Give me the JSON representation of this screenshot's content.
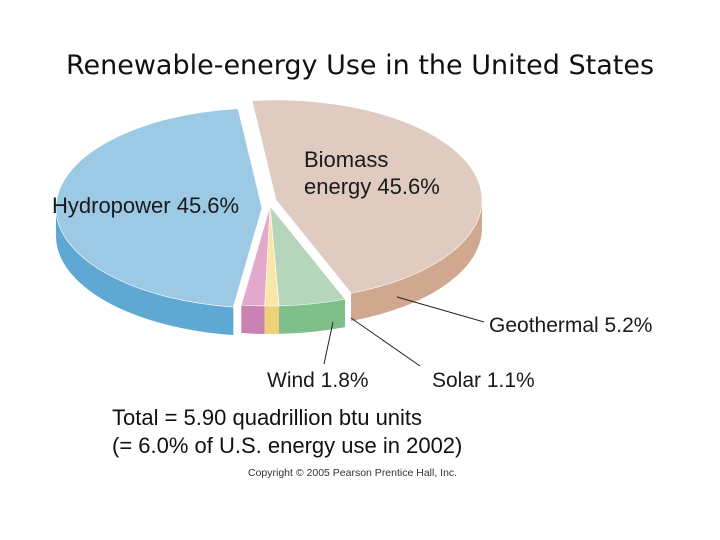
{
  "slide": {
    "title": "Renewable-energy Use in the United States"
  },
  "chart_data": {
    "type": "pie",
    "title": "Renewable-energy Use in the United States",
    "slices": [
      {
        "name": "Hydropower",
        "value": 45.6,
        "label": "Hydropower 45.6%",
        "color": "#9cc9e3",
        "side_color": "#5fa8d3"
      },
      {
        "name": "Biomass energy",
        "value": 45.6,
        "label_lines": [
          "Biomass",
          "energy 45.6%"
        ],
        "color": "#dfcbbf",
        "side_color": "#cfa88f"
      },
      {
        "name": "Geothermal",
        "value": 5.2,
        "label": "Geothermal 5.2%",
        "color": "#b5d6bb",
        "side_color": "#7fbf8a"
      },
      {
        "name": "Solar",
        "value": 1.1,
        "label": "Solar 1.1%",
        "color": "#f8e7a8",
        "side_color": "#eed27a"
      },
      {
        "name": "Wind",
        "value": 1.8,
        "label": "Wind 1.8%",
        "color": "#e3a9cd",
        "side_color": "#c982b2"
      }
    ],
    "notes": [
      "Total = 5.90 quadrillion btu units",
      "(= 6.0% of U.S. energy use in 2002)"
    ],
    "credit": "Copyright © 2005 Pearson Prentice Hall, Inc."
  }
}
